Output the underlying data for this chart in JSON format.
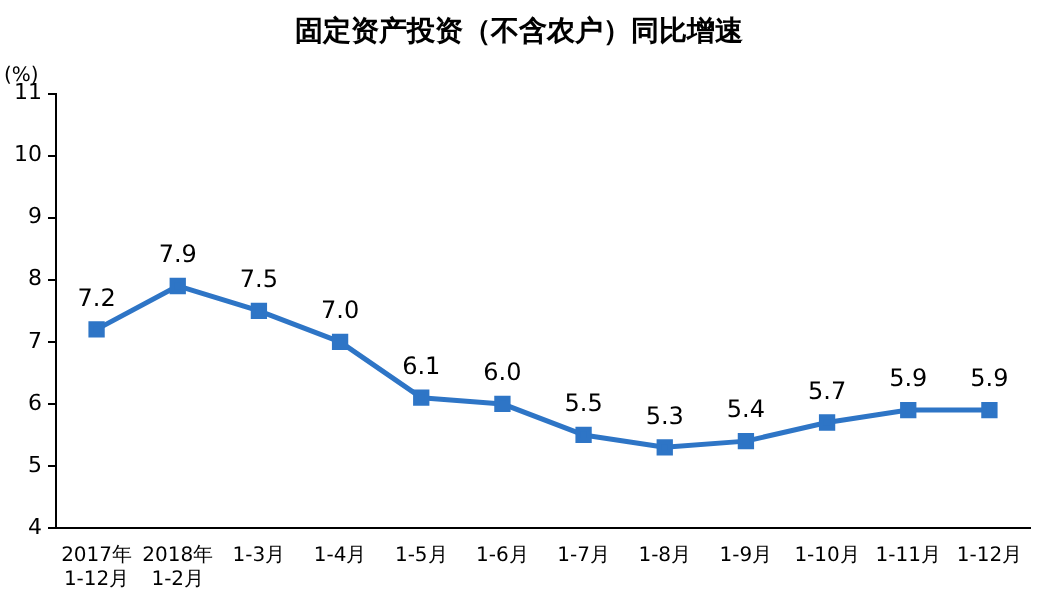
{
  "chart_data": {
    "type": "line",
    "title": "固定资产投资（不含农户）同比增速",
    "ylabel": "(%)",
    "categories": [
      "2017年\n1-12月",
      "2018年\n1-2月",
      "1-3月",
      "1-4月",
      "1-5月",
      "1-6月",
      "1-7月",
      "1-8月",
      "1-9月",
      "1-10月",
      "1-11月",
      "1-12月"
    ],
    "series": [
      {
        "color": "#2e75c6",
        "values": [
          7.2,
          7.9,
          7.5,
          7.0,
          6.1,
          6.0,
          5.5,
          5.3,
          5.4,
          5.7,
          5.9,
          5.9
        ]
      }
    ],
    "value_labels": [
      "7.2",
      "7.9",
      "7.5",
      "7.0",
      "6.1",
      "6.0",
      "5.5",
      "5.3",
      "5.4",
      "5.7",
      "5.9",
      "5.9"
    ],
    "ylim": [
      4,
      11
    ],
    "yticks": [
      4,
      5,
      6,
      7,
      8,
      9,
      10,
      11
    ],
    "grid": false,
    "legend": false,
    "marker": "square",
    "line_style": "solid"
  }
}
